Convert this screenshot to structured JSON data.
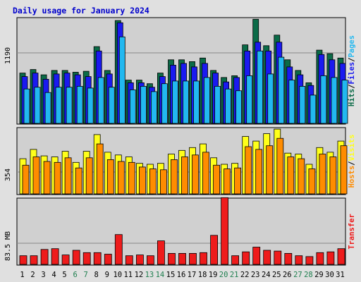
{
  "title": "Daily usage for January 2024",
  "colors": {
    "background": "#e0e0e0",
    "panel": "#d0d0d0",
    "title": "#0000cc",
    "hits": "#0b6b48",
    "files": "#1a1af0",
    "pages": "#22b8f0",
    "visits": "#ffff1a",
    "hosts": "#ff8c00",
    "transfer": "#ee1b1b",
    "weekday": "#000000",
    "weekend": "#1f7f4f"
  },
  "chart_data": [
    {
      "type": "bar",
      "panel": "hits-files-pages",
      "y_max_label": "1190",
      "ylim": [
        0,
        1190
      ],
      "right_label_parts": [
        {
          "text": "Hits",
          "color": "#0b6b48"
        },
        {
          "text": "/",
          "color": "#000000"
        },
        {
          "text": "Files",
          "color": "#1a1af0"
        },
        {
          "text": "/",
          "color": "#000000"
        },
        {
          "text": "Pages",
          "color": "#22b8f0"
        }
      ],
      "categories": [
        "1",
        "2",
        "3",
        "4",
        "5",
        "6",
        "7",
        "8",
        "9",
        "10",
        "11",
        "12",
        "13",
        "14",
        "15",
        "16",
        "17",
        "18",
        "19",
        "20",
        "21",
        "22",
        "23",
        "24",
        "25",
        "26",
        "27",
        "28",
        "29",
        "30",
        "31"
      ],
      "weekend_days": [
        "6",
        "7",
        "13",
        "14",
        "20",
        "21",
        "27",
        "28"
      ],
      "series": [
        {
          "name": "Hits",
          "values": [
            570,
            610,
            550,
            600,
            600,
            580,
            590,
            870,
            600,
            1165,
            490,
            490,
            450,
            570,
            720,
            720,
            700,
            740,
            600,
            520,
            540,
            890,
            1180,
            880,
            1000,
            720,
            600,
            460,
            830,
            790,
            740
          ]
        },
        {
          "name": "Files",
          "values": [
            530,
            570,
            500,
            560,
            570,
            550,
            530,
            820,
            560,
            1140,
            460,
            460,
            410,
            530,
            660,
            680,
            640,
            680,
            570,
            470,
            520,
            820,
            920,
            820,
            920,
            640,
            550,
            430,
            780,
            720,
            680
          ]
        },
        {
          "name": "Pages",
          "values": [
            390,
            410,
            350,
            410,
            410,
            420,
            400,
            520,
            410,
            980,
            380,
            420,
            360,
            450,
            480,
            480,
            480,
            520,
            420,
            390,
            370,
            540,
            820,
            560,
            750,
            490,
            420,
            320,
            540,
            520,
            490
          ]
        }
      ]
    },
    {
      "type": "bar",
      "panel": "visits-hosts",
      "y_max_label": "354",
      "ylim": [
        0,
        354
      ],
      "right_label_parts": [
        {
          "text": "Hosts",
          "color": "#ff8c00"
        },
        {
          "text": "/",
          "color": "#000000"
        },
        {
          "text": "Visits",
          "color": "#ffff1a"
        }
      ],
      "categories": [
        "1",
        "2",
        "3",
        "4",
        "5",
        "6",
        "7",
        "8",
        "9",
        "10",
        "11",
        "12",
        "13",
        "14",
        "15",
        "16",
        "17",
        "18",
        "19",
        "20",
        "21",
        "22",
        "23",
        "24",
        "25",
        "26",
        "27",
        "28",
        "29",
        "30",
        "31"
      ],
      "series": [
        {
          "name": "Visits",
          "values": [
            190,
            240,
            205,
            200,
            230,
            170,
            230,
            320,
            225,
            210,
            200,
            165,
            160,
            165,
            215,
            235,
            250,
            270,
            195,
            160,
            165,
            310,
            285,
            325,
            350,
            220,
            215,
            160,
            250,
            225,
            285
          ]
        },
        {
          "name": "Hosts",
          "values": [
            155,
            200,
            175,
            170,
            195,
            140,
            195,
            270,
            185,
            175,
            170,
            145,
            135,
            130,
            185,
            200,
            210,
            225,
            155,
            135,
            140,
            255,
            240,
            260,
            300,
            200,
            190,
            135,
            215,
            200,
            260
          ]
        }
      ]
    },
    {
      "type": "bar",
      "panel": "transfer",
      "y_max_label": "83.5 MB",
      "ylim": [
        0,
        83.5
      ],
      "right_label_parts": [
        {
          "text": "Transfer",
          "color": "#ee1b1b"
        }
      ],
      "categories": [
        "1",
        "2",
        "3",
        "4",
        "5",
        "6",
        "7",
        "8",
        "9",
        "10",
        "11",
        "12",
        "13",
        "14",
        "15",
        "16",
        "17",
        "18",
        "19",
        "20",
        "21",
        "22",
        "23",
        "24",
        "25",
        "26",
        "27",
        "28",
        "29",
        "30",
        "31"
      ],
      "series": [
        {
          "name": "Transfer",
          "values": [
            11,
            11,
            19,
            20,
            12,
            18,
            15,
            15,
            13,
            38,
            11,
            12,
            11,
            30,
            14,
            14,
            14,
            15,
            37,
            85,
            11,
            16,
            22,
            18,
            17,
            14,
            11,
            10,
            15,
            16,
            20
          ]
        }
      ]
    }
  ]
}
